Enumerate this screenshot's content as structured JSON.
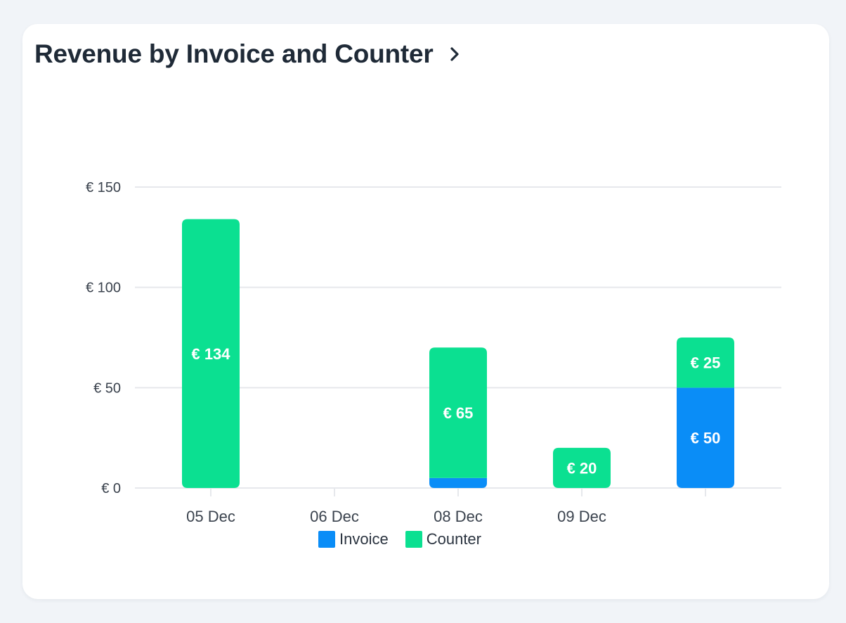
{
  "card": {
    "title": "Revenue by Invoice and Counter"
  },
  "icons": {
    "title_chevron": "chevron-right-icon"
  },
  "colors": {
    "invoice": "#0a8df7",
    "counter": "#0be091",
    "grid": "#e6e8ec",
    "axis_text": "#3a424d",
    "title": "#1f2a37"
  },
  "chart_data": {
    "type": "bar",
    "stacked": true,
    "title": "Revenue by Invoice and Counter",
    "xlabel": "",
    "ylabel": "",
    "ylim": [
      0,
      150
    ],
    "yticks": [
      0,
      50,
      100,
      150
    ],
    "ytick_labels": [
      "€ 0",
      "€ 50",
      "€ 100",
      "€ 150"
    ],
    "categories": [
      "05 Dec",
      "06 Dec",
      "08 Dec",
      "09 Dec",
      ""
    ],
    "series": [
      {
        "name": "Invoice",
        "color": "#0a8df7",
        "values": [
          0,
          0,
          5,
          0,
          50
        ],
        "labels": [
          "",
          "",
          "",
          "",
          "€ 50"
        ]
      },
      {
        "name": "Counter",
        "color": "#0be091",
        "values": [
          134,
          0,
          65,
          20,
          25
        ],
        "labels": [
          "€ 134",
          "",
          "€ 65",
          "€ 20",
          "€ 25"
        ]
      }
    ],
    "legend": {
      "position": "bottom-center",
      "items": [
        "Invoice",
        "Counter"
      ]
    },
    "grid": true
  }
}
